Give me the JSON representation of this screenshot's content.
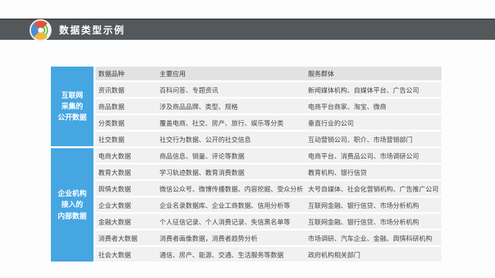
{
  "slide": {
    "title": "数据类型示例"
  },
  "icon": {
    "name": "pinwheel-signal-logo",
    "red": "#e05243",
    "blue": "#4a8fd3",
    "yellow": "#f2b43c",
    "green": "#6abf3a"
  },
  "colors": {
    "accent_blue": "#45a6e2",
    "titlebar_gray": "#54585b",
    "row_gray": "#f1f1f2",
    "header_row_gray": "#e2e2e3"
  },
  "table": {
    "headers": {
      "col1": "数据品种",
      "col2": "主要应用",
      "col3": "服务群体"
    },
    "sections": [
      {
        "lines": [
          "互联网",
          "采集的",
          "公开数据"
        ]
      },
      {
        "lines": [
          "企业机构",
          "接入的",
          "内部数据"
        ]
      }
    ],
    "rows": [
      {
        "type": "资讯数据",
        "app": "百科问答、专题资讯",
        "group": "新闻媒体机构、自媒体平台、广告公司"
      },
      {
        "type": "商品数据",
        "app": "涉及商品品牌、类型、规格",
        "group": "电商平台商家、淘宝、微商"
      },
      {
        "type": "分类数据",
        "app": "覆盖电商、社交、房产、旅行、娱乐等分类",
        "group": "垂直行业的公司"
      },
      {
        "type": "社交数据",
        "app": "社交行为数据、公开的社交信息",
        "group": "互动营销公司、职介、市场营销部门"
      },
      {
        "type": "电商大数据",
        "app": "商品信息、销量、评论等数据",
        "group": "电商平台、消费品公司、市场调研公司"
      },
      {
        "type": "教育大数据",
        "app": "学习轨迹数据、教育消费数据",
        "group": "教育机构、银行信贷"
      },
      {
        "type": "舆情大数据",
        "app": "微信公众号、微博传播数据、内容挖掘、受众分析",
        "group": "大号自媒体、社会化营销机构、广告推广公司"
      },
      {
        "type": "企业大数据",
        "app": "企业名录数据库、企业工商数据、信用分析等",
        "group": "互联网金融、银行信贷、市场分析机构"
      },
      {
        "type": "金融大数据",
        "app": "个人征信记录、个人消费记录、失信黑名单等",
        "group": "互联网金融、银行信贷、市场分析机构"
      },
      {
        "type": "消费者大数据",
        "app": "消费者画像数据，消费者趋势分析",
        "group": "市场调研、汽车企业、金融、舆情科研机构"
      },
      {
        "type": "社会大数据",
        "app": "通信、房产、能源、交通、生活服务等数据",
        "group": "政府机构相关部门"
      }
    ]
  }
}
